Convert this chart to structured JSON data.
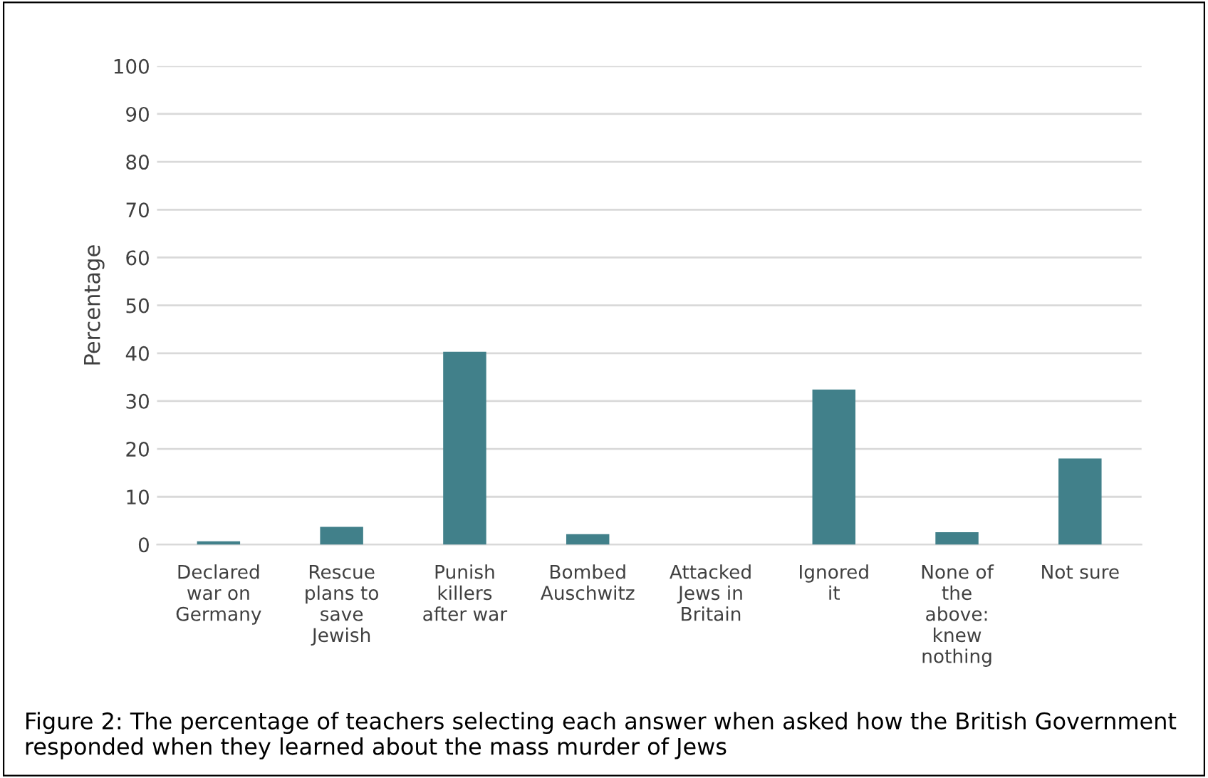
{
  "chart_data": {
    "type": "bar",
    "categories": [
      "Declared war on Germany",
      "Rescue plans to save Jewish",
      "Punish killers after war",
      "Bombed Auschwitz",
      "Attacked Jews in Britain",
      "Ignored it",
      "None of the above: knew nothing",
      "Not sure"
    ],
    "values": [
      0.7,
      3.7,
      40.3,
      2.2,
      0,
      32.4,
      2.6,
      18.0
    ],
    "color": "#41808a",
    "ylabel": "Percentage",
    "ylim": [
      0,
      100
    ],
    "yticks": [
      0,
      10,
      20,
      30,
      40,
      50,
      60,
      70,
      80,
      90,
      100
    ],
    "grid": "y",
    "legend": false,
    "annotations": [
      "Figure 2: The percentage of teachers selecting each answer when asked how the British Government responded when they learned about the mass murder of Jews"
    ]
  }
}
